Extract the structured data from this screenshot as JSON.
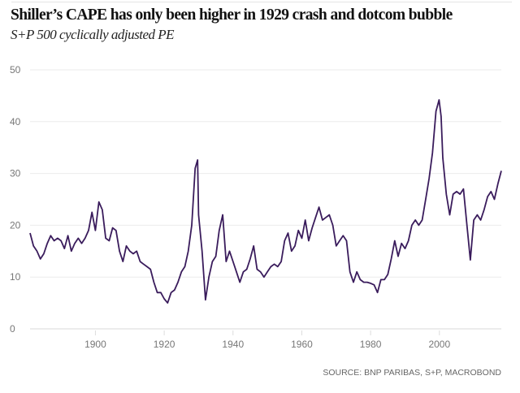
{
  "chart_data": {
    "type": "line",
    "title": "Shiller’s CAPE has only been higher in 1929 crash and dotcom bubble",
    "subtitle": "S+P 500 cyclically adjusted PE",
    "source": "SOURCE: BNP PARIBAS, S+P, MACROBOND",
    "xlabel": "",
    "ylabel": "",
    "xlim": [
      1881,
      2018
    ],
    "ylim": [
      0,
      50
    ],
    "grid": true,
    "x_ticks": [
      "1900",
      "1920",
      "1940",
      "1960",
      "1980",
      "2000"
    ],
    "y_ticks": [
      "0",
      "10",
      "20",
      "30",
      "40",
      "50"
    ],
    "line_color": "#3a1c5c",
    "series": [
      {
        "name": "CAPE",
        "x": [
          1881,
          1882,
          1883,
          1884,
          1885,
          1886,
          1887,
          1888,
          1889,
          1890,
          1891,
          1892,
          1893,
          1894,
          1895,
          1896,
          1897,
          1898,
          1899,
          1900,
          1901,
          1902,
          1903,
          1904,
          1905,
          1906,
          1907,
          1908,
          1909,
          1910,
          1911,
          1912,
          1913,
          1914,
          1915,
          1916,
          1917,
          1918,
          1919,
          1920,
          1921,
          1922,
          1923,
          1924,
          1925,
          1926,
          1927,
          1928,
          1929,
          1929.7,
          1930,
          1931,
          1932,
          1933,
          1934,
          1935,
          1936,
          1937,
          1938,
          1939,
          1940,
          1941,
          1942,
          1943,
          1944,
          1945,
          1946,
          1947,
          1948,
          1949,
          1950,
          1951,
          1952,
          1953,
          1954,
          1955,
          1956,
          1957,
          1958,
          1959,
          1960,
          1961,
          1962,
          1963,
          1964,
          1965,
          1966,
          1967,
          1968,
          1969,
          1970,
          1971,
          1972,
          1973,
          1974,
          1975,
          1976,
          1977,
          1978,
          1979,
          1980,
          1981,
          1982,
          1983,
          1984,
          1985,
          1986,
          1987,
          1988,
          1989,
          1990,
          1991,
          1992,
          1993,
          1994,
          1995,
          1996,
          1997,
          1998,
          1999,
          1999.9,
          2000.5,
          2001,
          2002,
          2003,
          2004,
          2005,
          2006,
          2007,
          2008,
          2009,
          2010,
          2011,
          2012,
          2013,
          2014,
          2015,
          2016,
          2017,
          2018
        ],
        "values": [
          18.5,
          16,
          15,
          13.5,
          14.5,
          16.5,
          18,
          17,
          17.5,
          17,
          15.5,
          18,
          15,
          16.5,
          17.5,
          16.5,
          17.5,
          19,
          22.5,
          19,
          24.5,
          23,
          17.5,
          17,
          19.5,
          19,
          15,
          13,
          16,
          15,
          14.5,
          15,
          13,
          12.5,
          12,
          11.5,
          9,
          7,
          7,
          5.8,
          5,
          7,
          7.5,
          9,
          11,
          12,
          15,
          20,
          31,
          32.6,
          22,
          15,
          5.6,
          10,
          13,
          14,
          19,
          22,
          13,
          15,
          13,
          11,
          9,
          11,
          11.5,
          13.5,
          16,
          11.5,
          11,
          10,
          11,
          12,
          12.5,
          12,
          13,
          17,
          18.5,
          15,
          16,
          19,
          17.5,
          21,
          17,
          19.5,
          21.5,
          23.5,
          21,
          21.5,
          22,
          20,
          16,
          17,
          18,
          17,
          11,
          9,
          11,
          9.5,
          9,
          9,
          8.8,
          8.5,
          7,
          9.5,
          9.5,
          10.5,
          13.5,
          17,
          14,
          16.5,
          15.5,
          17,
          20,
          21,
          20,
          21,
          25,
          29,
          34,
          42,
          44.2,
          41,
          33,
          26,
          22,
          26,
          26.5,
          26,
          27,
          20,
          13.3,
          21,
          22,
          21,
          23,
          25.5,
          26.5,
          25,
          28,
          30.5
        ]
      }
    ]
  }
}
